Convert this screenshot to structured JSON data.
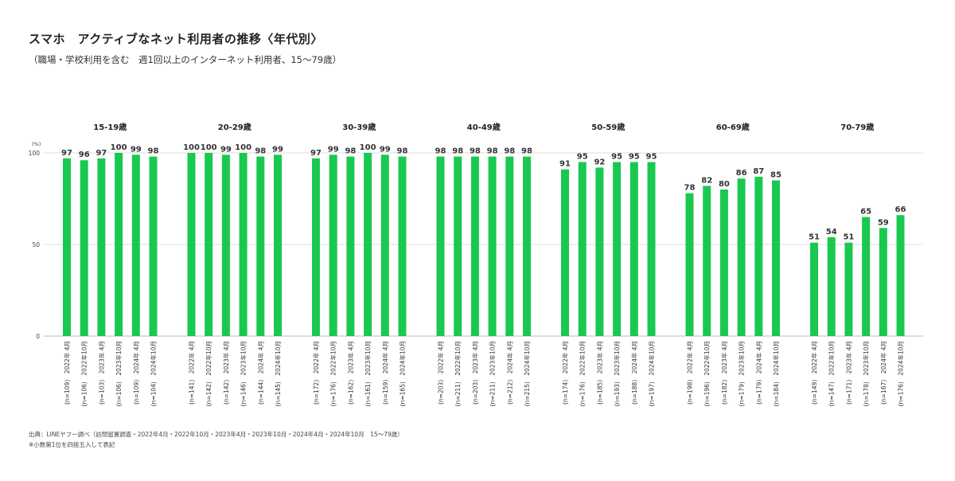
{
  "title": "スマホ　アクティブなネット利用者の推移〈年代別〉",
  "subtitle": "（職場・学校利用を含む　週1回以上のインターネット利用者、15〜79歳）",
  "footnotes": [
    "出典：LINEヤフー調べ（訪問留置調査・2022年4月・2022年10月・2023年4月・2023年10月・2024年4月・2024年10月　15〜79歳）",
    "※小数第1位を四捨五入して表記"
  ],
  "colors": {
    "bar": "#19c94f",
    "grid": "#dddddd",
    "axis": "#bbbbbb"
  },
  "chart_data": {
    "type": "bar",
    "unit": "(%)",
    "ylim": [
      0,
      100
    ],
    "yticks": [
      0,
      50,
      100
    ],
    "grid": true,
    "periods": [
      "2022年 4月",
      "2022年10月",
      "2023年 4月",
      "2023年10月",
      "2024年 4月",
      "2024年10月"
    ],
    "groups": [
      {
        "name": "15-19歳",
        "values": [
          97,
          96,
          97,
          100,
          99,
          98
        ],
        "n": [
          "(n=109)",
          "(n=106)",
          "(n=103)",
          "(n=106)",
          "(n=109)",
          "(n=104)"
        ]
      },
      {
        "name": "20-29歳",
        "values": [
          100,
          100,
          99,
          100,
          98,
          99
        ],
        "n": [
          "(n=141)",
          "(n=142)",
          "(n=142)",
          "(n=146)",
          "(n=144)",
          "(n=145)"
        ]
      },
      {
        "name": "30-39歳",
        "values": [
          97,
          99,
          98,
          100,
          99,
          98
        ],
        "n": [
          "(n=172)",
          "(n=176)",
          "(n=162)",
          "(n=161)",
          "(n=159)",
          "(n=165)"
        ]
      },
      {
        "name": "40-49歳",
        "values": [
          98,
          98,
          98,
          98,
          98,
          98
        ],
        "n": [
          "(n=203)",
          "(n=211)",
          "(n=203)",
          "(n=211)",
          "(n=212)",
          "(n=215)"
        ]
      },
      {
        "name": "50-59歳",
        "values": [
          91,
          95,
          92,
          95,
          95,
          95
        ],
        "n": [
          "(n=174)",
          "(n=176)",
          "(n=185)",
          "(n=193)",
          "(n=188)",
          "(n=197)"
        ]
      },
      {
        "name": "60-69歳",
        "values": [
          78,
          82,
          80,
          86,
          87,
          85
        ],
        "n": [
          "(n=198)",
          "(n=196)",
          "(n=182)",
          "(n=179)",
          "(n=179)",
          "(n=184)"
        ]
      },
      {
        "name": "70-79歳",
        "values": [
          51,
          54,
          51,
          65,
          59,
          66
        ],
        "n": [
          "(n=149)",
          "(n=147)",
          "(n=171)",
          "(n=178)",
          "(n=167)",
          "(n=176)"
        ]
      }
    ]
  }
}
